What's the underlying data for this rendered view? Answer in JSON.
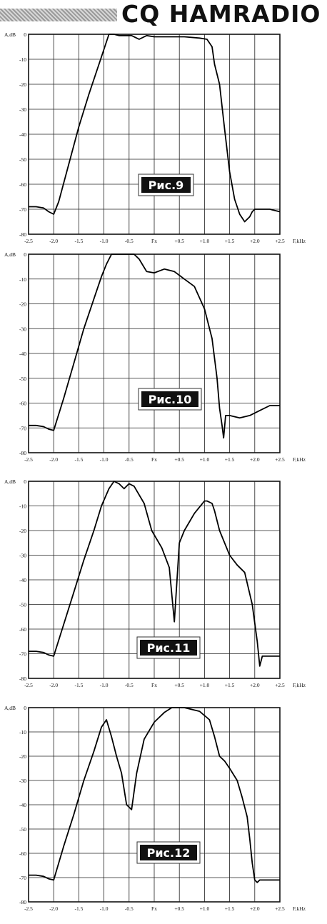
{
  "header": {
    "title": "CQ HAMRADIO"
  },
  "chart_data": [
    {
      "type": "line",
      "caption": "Рис.9",
      "ylabel": "A,dB",
      "xlabel": "F,kHz",
      "xlim": [
        -2.5,
        2.5
      ],
      "ylim": [
        -80,
        0
      ],
      "x_ticks": [
        "-2.5",
        "-2.0",
        "-1.5",
        "-1.0",
        "-0.5",
        "Fx",
        "+0.5",
        "+1.0",
        "+1.5",
        "+2.0",
        "+2.5"
      ],
      "y_ticks": [
        "0",
        "-10",
        "-20",
        "-30",
        "-40",
        "-50",
        "-60",
        "-70",
        "-80"
      ],
      "grid": true,
      "series": [
        {
          "x": [
            -2.5,
            -2.35,
            -2.2,
            -2.1,
            -2.0,
            -1.9,
            -1.7,
            -1.5,
            -1.3,
            -1.1,
            -1.0,
            -0.9,
            -0.85,
            -0.8,
            -0.7,
            -0.6,
            -0.45,
            -0.35,
            -0.3,
            -0.15,
            0.0,
            0.3,
            0.6,
            0.9,
            1.05,
            1.15,
            1.2,
            1.3,
            1.4,
            1.5,
            1.6,
            1.7,
            1.8,
            1.9,
            1.95,
            2.0,
            2.1,
            2.3,
            2.5
          ],
          "y": [
            -69,
            -69,
            -69.5,
            -71,
            -72,
            -67,
            -52,
            -37,
            -24,
            -12,
            -6,
            0,
            0,
            0,
            -0.5,
            -0.5,
            -0.5,
            -1.5,
            -2,
            -0.5,
            -1,
            -1,
            -1,
            -1.5,
            -2,
            -5,
            -12,
            -20,
            -38,
            -55,
            -66,
            -72,
            -75,
            -73,
            -71,
            -70,
            -70,
            -70,
            -71
          ]
        }
      ]
    },
    {
      "type": "line",
      "caption": "Рис.10",
      "ylabel": "A,dB",
      "xlabel": "F,kHz",
      "xlim": [
        -2.5,
        2.5
      ],
      "ylim": [
        -80,
        0
      ],
      "x_ticks": [
        "-2.5",
        "-2.0",
        "-1.5",
        "-1.0",
        "-0.5",
        "Fx",
        "+0.5",
        "+1.0",
        "+1.5",
        "+2.0",
        "+2.5"
      ],
      "y_ticks": [
        "0",
        "-10",
        "-20",
        "-30",
        "-40",
        "-50",
        "-60",
        "-70",
        "-80"
      ],
      "grid": true,
      "series": [
        {
          "x": [
            -2.5,
            -2.35,
            -2.2,
            -2.1,
            -2.0,
            -1.8,
            -1.6,
            -1.4,
            -1.2,
            -1.05,
            -0.95,
            -0.85,
            -0.75,
            -0.6,
            -0.4,
            -0.3,
            -0.15,
            0.0,
            0.2,
            0.4,
            0.6,
            0.8,
            1.0,
            1.15,
            1.25,
            1.3,
            1.35,
            1.38,
            1.42,
            1.5,
            1.7,
            1.9,
            2.1,
            2.3,
            2.5
          ],
          "y": [
            -69,
            -69,
            -69.5,
            -70.5,
            -71,
            -58,
            -44,
            -30,
            -18,
            -9,
            -4,
            0,
            0,
            0,
            0,
            -2,
            -7,
            -7.5,
            -6,
            -7,
            -10,
            -13,
            -22,
            -34,
            -50,
            -62,
            -69,
            -74,
            -65,
            -65,
            -66,
            -65,
            -63,
            -61,
            -61
          ]
        }
      ]
    },
    {
      "type": "line",
      "caption": "Рис.11",
      "ylabel": "A,dB",
      "xlabel": "F,kHz",
      "xlim": [
        -2.5,
        2.5
      ],
      "ylim": [
        -80,
        0
      ],
      "x_ticks": [
        "-2.5",
        "-2.0",
        "-1.5",
        "-1.0",
        "-0.5",
        "Fx",
        "+0.5",
        "+1.0",
        "+1.5",
        "+2.0",
        "+2.5"
      ],
      "y_ticks": [
        "0",
        "-10",
        "-20",
        "-30",
        "-40",
        "-50",
        "-60",
        "-70",
        "-80"
      ],
      "grid": true,
      "series": [
        {
          "x": [
            -2.5,
            -2.35,
            -2.2,
            -2.1,
            -2.0,
            -1.8,
            -1.6,
            -1.4,
            -1.2,
            -1.05,
            -0.9,
            -0.8,
            -0.7,
            -0.6,
            -0.5,
            -0.4,
            -0.2,
            -0.05,
            0.15,
            0.3,
            0.4,
            0.5,
            0.6,
            0.8,
            1.0,
            1.05,
            1.15,
            1.2,
            1.3,
            1.5,
            1.65,
            1.8,
            1.95,
            2.05,
            2.1,
            2.15,
            2.2,
            2.3,
            2.5
          ],
          "y": [
            -69,
            -69,
            -69.5,
            -70.5,
            -71,
            -58,
            -45,
            -32,
            -20,
            -10,
            -3,
            0,
            -1,
            -3,
            -1,
            -2,
            -9,
            -20,
            -27,
            -35,
            -57,
            -25,
            -20,
            -13,
            -8,
            -8,
            -9,
            -12,
            -20,
            -30,
            -34,
            -37,
            -50,
            -65,
            -75,
            -71,
            -71,
            -71,
            -71
          ]
        }
      ]
    },
    {
      "type": "line",
      "caption": "Рис.12",
      "ylabel": "A,dB",
      "xlabel": "F,kHz",
      "xlim": [
        -2.5,
        2.5
      ],
      "ylim": [
        -80,
        0
      ],
      "x_ticks": [
        "-2.5",
        "-2.0",
        "-1.5",
        "-1.0",
        "-0.5",
        "Fx",
        "+0.5",
        "+1.0",
        "+1.5",
        "+2.0",
        "+2.5"
      ],
      "y_ticks": [
        "0",
        "-10",
        "-20",
        "-30",
        "-40",
        "-50",
        "-60",
        "-70",
        "-80"
      ],
      "grid": true,
      "series": [
        {
          "x": [
            -2.5,
            -2.35,
            -2.2,
            -2.1,
            -2.0,
            -1.8,
            -1.6,
            -1.4,
            -1.2,
            -1.05,
            -0.95,
            -0.85,
            -0.75,
            -0.65,
            -0.55,
            -0.45,
            -0.35,
            -0.2,
            0.0,
            0.2,
            0.35,
            0.6,
            0.9,
            1.1,
            1.2,
            1.3,
            1.4,
            1.5,
            1.65,
            1.75,
            1.85,
            1.9,
            1.95,
            2.0,
            2.05,
            2.1,
            2.3,
            2.5
          ],
          "y": [
            -69,
            -69,
            -69.5,
            -70.5,
            -71,
            -57,
            -44,
            -30,
            -18,
            -8,
            -5,
            -12,
            -20,
            -27,
            -40,
            -42,
            -27,
            -13,
            -6,
            -2,
            0,
            0,
            -1.5,
            -5,
            -12,
            -20,
            -22,
            -25,
            -30,
            -37,
            -45,
            -54,
            -64,
            -71,
            -72,
            -71,
            -71,
            -71
          ]
        }
      ]
    }
  ]
}
